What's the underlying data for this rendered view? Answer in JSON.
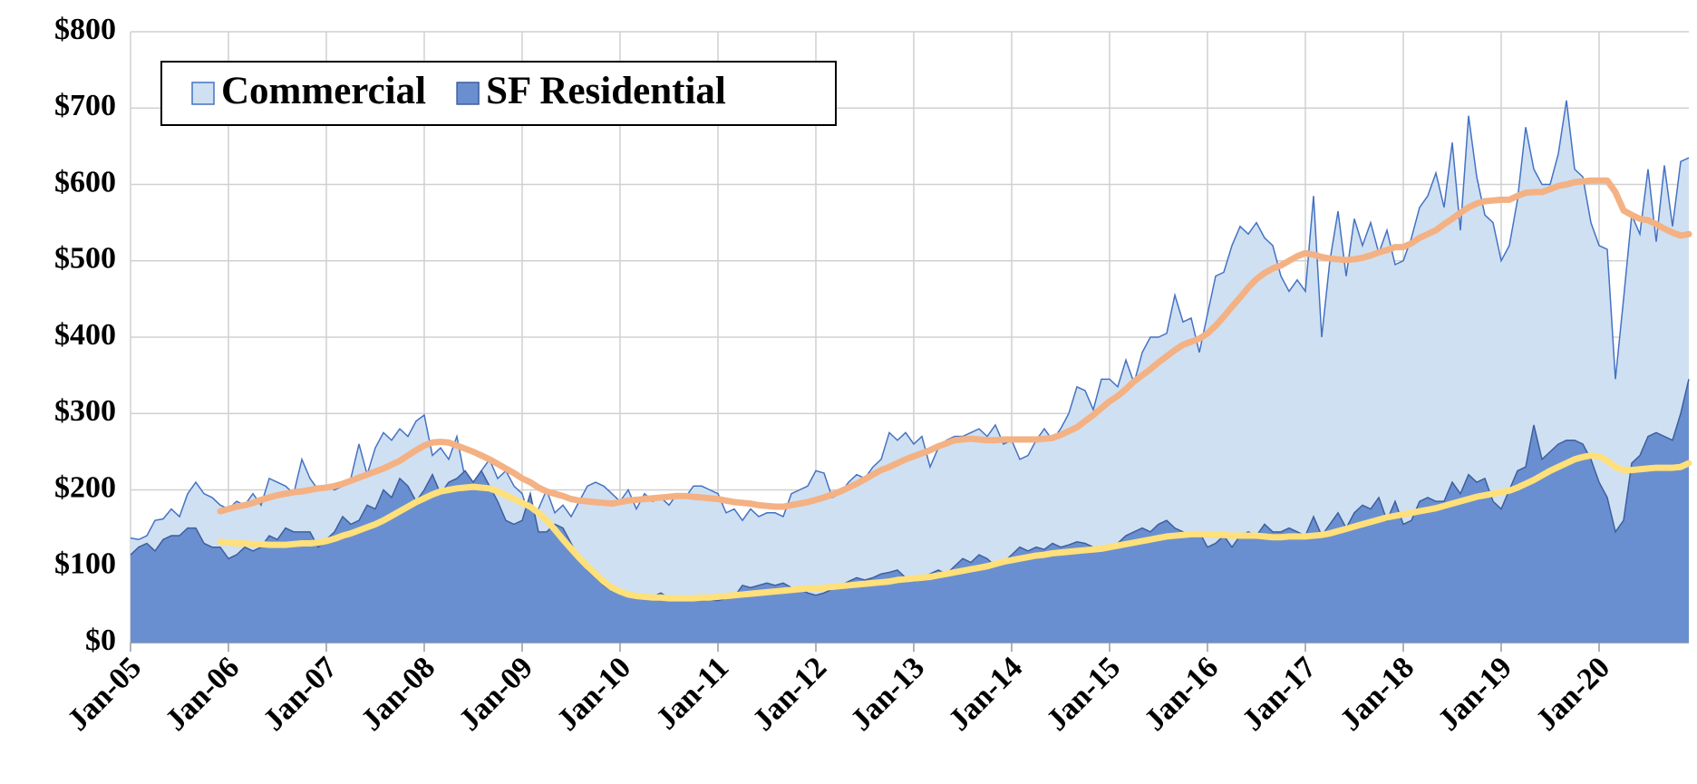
{
  "chart_data": {
    "type": "area",
    "categories": [
      "Jan-05",
      null,
      null,
      null,
      null,
      null,
      null,
      null,
      null,
      null,
      null,
      null,
      "Jan-06",
      null,
      null,
      null,
      null,
      null,
      null,
      null,
      null,
      null,
      null,
      null,
      "Jan-07",
      null,
      null,
      null,
      null,
      null,
      null,
      null,
      null,
      null,
      null,
      null,
      "Jan-08",
      null,
      null,
      null,
      null,
      null,
      null,
      null,
      null,
      null,
      null,
      null,
      "Jan-09",
      null,
      null,
      null,
      null,
      null,
      null,
      null,
      null,
      null,
      null,
      null,
      "Jan-10",
      null,
      null,
      null,
      null,
      null,
      null,
      null,
      null,
      null,
      null,
      null,
      "Jan-11",
      null,
      null,
      null,
      null,
      null,
      null,
      null,
      null,
      null,
      null,
      null,
      "Jan-12",
      null,
      null,
      null,
      null,
      null,
      null,
      null,
      null,
      null,
      null,
      null,
      "Jan-13",
      null,
      null,
      null,
      null,
      null,
      null,
      null,
      null,
      null,
      null,
      null,
      "Jan-14",
      null,
      null,
      null,
      null,
      null,
      null,
      null,
      null,
      null,
      null,
      null,
      "Jan-15",
      null,
      null,
      null,
      null,
      null,
      null,
      null,
      null,
      null,
      null,
      null,
      "Jan-16",
      null,
      null,
      null,
      null,
      null,
      null,
      null,
      null,
      null,
      null,
      null,
      "Jan-17",
      null,
      null,
      null,
      null,
      null,
      null,
      null,
      null,
      null,
      null,
      null,
      "Jan-18",
      null,
      null,
      null,
      null,
      null,
      null,
      null,
      null,
      null,
      null,
      null,
      "Jan-19",
      null,
      null,
      null,
      null,
      null,
      null,
      null,
      null,
      null,
      null,
      null,
      "Jan-20",
      null,
      null,
      null,
      null,
      null,
      null,
      null,
      null,
      null,
      null,
      null
    ],
    "series": [
      {
        "name": "Commercial",
        "type": "area",
        "color": "#cfe0f2",
        "stroke": "#4472c4",
        "values": [
          137,
          135,
          140,
          160,
          162,
          175,
          165,
          195,
          210,
          195,
          190,
          180,
          175,
          185,
          180,
          195,
          180,
          215,
          210,
          205,
          195,
          240,
          215,
          200,
          205,
          200,
          205,
          215,
          260,
          220,
          255,
          275,
          265,
          280,
          270,
          290,
          298,
          245,
          255,
          240,
          270,
          215,
          200,
          225,
          240,
          215,
          225,
          205,
          195,
          160,
          175,
          200,
          170,
          180,
          165,
          185,
          205,
          210,
          205,
          195,
          185,
          200,
          175,
          195,
          185,
          190,
          180,
          195,
          190,
          205,
          205,
          200,
          195,
          170,
          175,
          160,
          175,
          165,
          170,
          170,
          165,
          195,
          200,
          205,
          225,
          222,
          190,
          195,
          210,
          220,
          215,
          230,
          240,
          275,
          265,
          275,
          260,
          270,
          230,
          255,
          265,
          270,
          270,
          275,
          280,
          270,
          285,
          260,
          265,
          240,
          245,
          265,
          280,
          265,
          280,
          300,
          335,
          330,
          305,
          345,
          345,
          335,
          370,
          340,
          380,
          400,
          400,
          405,
          455,
          420,
          425,
          380,
          430,
          480,
          485,
          520,
          545,
          535,
          550,
          530,
          520,
          480,
          460,
          475,
          460,
          585,
          400,
          500,
          565,
          480,
          555,
          520,
          550,
          510,
          540,
          495,
          500,
          530,
          570,
          585,
          615,
          570,
          655,
          540,
          690,
          610,
          560,
          550,
          500,
          520,
          580,
          675,
          620,
          600,
          600,
          640,
          710,
          620,
          610,
          550,
          520,
          515,
          345,
          450,
          560,
          535,
          620,
          525,
          625,
          545,
          630,
          635
        ]
      },
      {
        "name": "SF Residential",
        "type": "area",
        "color": "#6a8fd0",
        "stroke": "#3d5f9e",
        "values": [
          115,
          125,
          130,
          120,
          135,
          140,
          140,
          150,
          150,
          130,
          125,
          125,
          110,
          115,
          125,
          120,
          125,
          140,
          135,
          150,
          145,
          145,
          145,
          125,
          135,
          145,
          165,
          155,
          160,
          180,
          175,
          200,
          190,
          215,
          205,
          185,
          200,
          220,
          195,
          210,
          215,
          225,
          210,
          225,
          205,
          185,
          160,
          155,
          160,
          195,
          145,
          145,
          155,
          150,
          130,
          110,
          95,
          85,
          75,
          68,
          64,
          62,
          60,
          62,
          60,
          65,
          58,
          60,
          60,
          58,
          57,
          56,
          55,
          58,
          60,
          75,
          72,
          75,
          78,
          75,
          78,
          72,
          70,
          65,
          62,
          65,
          70,
          75,
          80,
          85,
          82,
          85,
          90,
          92,
          95,
          85,
          80,
          85,
          90,
          95,
          90,
          100,
          110,
          105,
          115,
          110,
          100,
          105,
          115,
          125,
          120,
          125,
          122,
          130,
          125,
          128,
          132,
          130,
          125,
          120,
          125,
          130,
          140,
          145,
          150,
          145,
          155,
          160,
          150,
          145,
          140,
          145,
          125,
          130,
          140,
          125,
          140,
          145,
          140,
          155,
          145,
          145,
          150,
          145,
          140,
          165,
          140,
          155,
          170,
          150,
          170,
          180,
          175,
          190,
          160,
          185,
          155,
          160,
          185,
          190,
          185,
          185,
          210,
          195,
          220,
          210,
          215,
          185,
          175,
          200,
          225,
          230,
          285,
          240,
          250,
          260,
          265,
          265,
          260,
          240,
          210,
          190,
          145,
          160,
          235,
          245,
          270,
          275,
          270,
          265,
          300,
          345
        ]
      },
      {
        "type": "line",
        "color": "#f4b183",
        "values": [
          null,
          null,
          null,
          null,
          null,
          null,
          null,
          null,
          null,
          null,
          null,
          172,
          175,
          178,
          180,
          183,
          187,
          190,
          193,
          195,
          197,
          198,
          200,
          202,
          203,
          205,
          208,
          212,
          216,
          220,
          224,
          228,
          233,
          238,
          245,
          252,
          258,
          262,
          263,
          262,
          258,
          254,
          250,
          245,
          240,
          234,
          228,
          222,
          215,
          210,
          203,
          198,
          195,
          192,
          188,
          186,
          185,
          184,
          183,
          182,
          184,
          186,
          187,
          188,
          189,
          190,
          191,
          192,
          192,
          191,
          190,
          189,
          188,
          186,
          184,
          183,
          182,
          180,
          179,
          178,
          178,
          180,
          182,
          184,
          187,
          190,
          194,
          198,
          203,
          208,
          214,
          220,
          226,
          230,
          235,
          240,
          244,
          248,
          252,
          257,
          261,
          265,
          266,
          267,
          266,
          265,
          265,
          266,
          266,
          266,
          266,
          266,
          267,
          268,
          272,
          277,
          282,
          290,
          298,
          307,
          316,
          323,
          332,
          342,
          350,
          358,
          367,
          375,
          383,
          390,
          394,
          398,
          405,
          415,
          427,
          440,
          452,
          465,
          476,
          484,
          490,
          494,
          500,
          506,
          510,
          508,
          505,
          503,
          502,
          501,
          502,
          504,
          507,
          511,
          514,
          518,
          518,
          523,
          530,
          535,
          540,
          548,
          555,
          563,
          570,
          575,
          578,
          579,
          580,
          580,
          585,
          589,
          590,
          590,
          594,
          598,
          600,
          603,
          604,
          605,
          605,
          605,
          590,
          566,
          560,
          555,
          553,
          548,
          542,
          537,
          533,
          535
        ]
      },
      {
        "type": "line",
        "color": "#ffe07a",
        "values": [
          null,
          null,
          null,
          null,
          null,
          null,
          null,
          null,
          null,
          null,
          null,
          132,
          131,
          130,
          130,
          129,
          129,
          128,
          128,
          128,
          129,
          130,
          130,
          131,
          133,
          136,
          140,
          143,
          147,
          151,
          155,
          160,
          166,
          172,
          178,
          184,
          189,
          194,
          198,
          200,
          202,
          203,
          204,
          203,
          202,
          198,
          193,
          188,
          183,
          178,
          170,
          160,
          148,
          135,
          123,
          111,
          100,
          90,
          80,
          72,
          67,
          63,
          61,
          60,
          59,
          59,
          58,
          58,
          58,
          58,
          59,
          59,
          60,
          61,
          62,
          63,
          64,
          65,
          66,
          67,
          68,
          69,
          70,
          71,
          71,
          72,
          73,
          74,
          75,
          76,
          77,
          78,
          79,
          80,
          82,
          83,
          84,
          85,
          86,
          88,
          90,
          92,
          94,
          96,
          98,
          100,
          103,
          106,
          108,
          110,
          112,
          114,
          115,
          117,
          118,
          119,
          120,
          121,
          122,
          123,
          125,
          127,
          129,
          131,
          133,
          135,
          137,
          139,
          140,
          141,
          142,
          142,
          142,
          141,
          141,
          140,
          140,
          140,
          140,
          139,
          138,
          138,
          139,
          139,
          139,
          140,
          141,
          143,
          146,
          149,
          152,
          155,
          158,
          161,
          164,
          166,
          168,
          170,
          172,
          174,
          176,
          179,
          182,
          185,
          188,
          191,
          193,
          195,
          197,
          199,
          203,
          208,
          213,
          219,
          225,
          230,
          235,
          240,
          243,
          245,
          244,
          238,
          230,
          226,
          226,
          227,
          228,
          229,
          229,
          229,
          230,
          235
        ]
      }
    ],
    "ylim": [
      0,
      800
    ],
    "yticks": [
      {
        "value": 0,
        "label": "$0"
      },
      {
        "value": 100,
        "label": "$100"
      },
      {
        "value": 200,
        "label": "$200"
      },
      {
        "value": 300,
        "label": "$300"
      },
      {
        "value": 400,
        "label": "$400"
      },
      {
        "value": 500,
        "label": "$500"
      },
      {
        "value": 600,
        "label": "$600"
      },
      {
        "value": 700,
        "label": "$700"
      },
      {
        "value": 800,
        "label": "$800"
      }
    ],
    "grid": true,
    "legend": "upper left"
  }
}
